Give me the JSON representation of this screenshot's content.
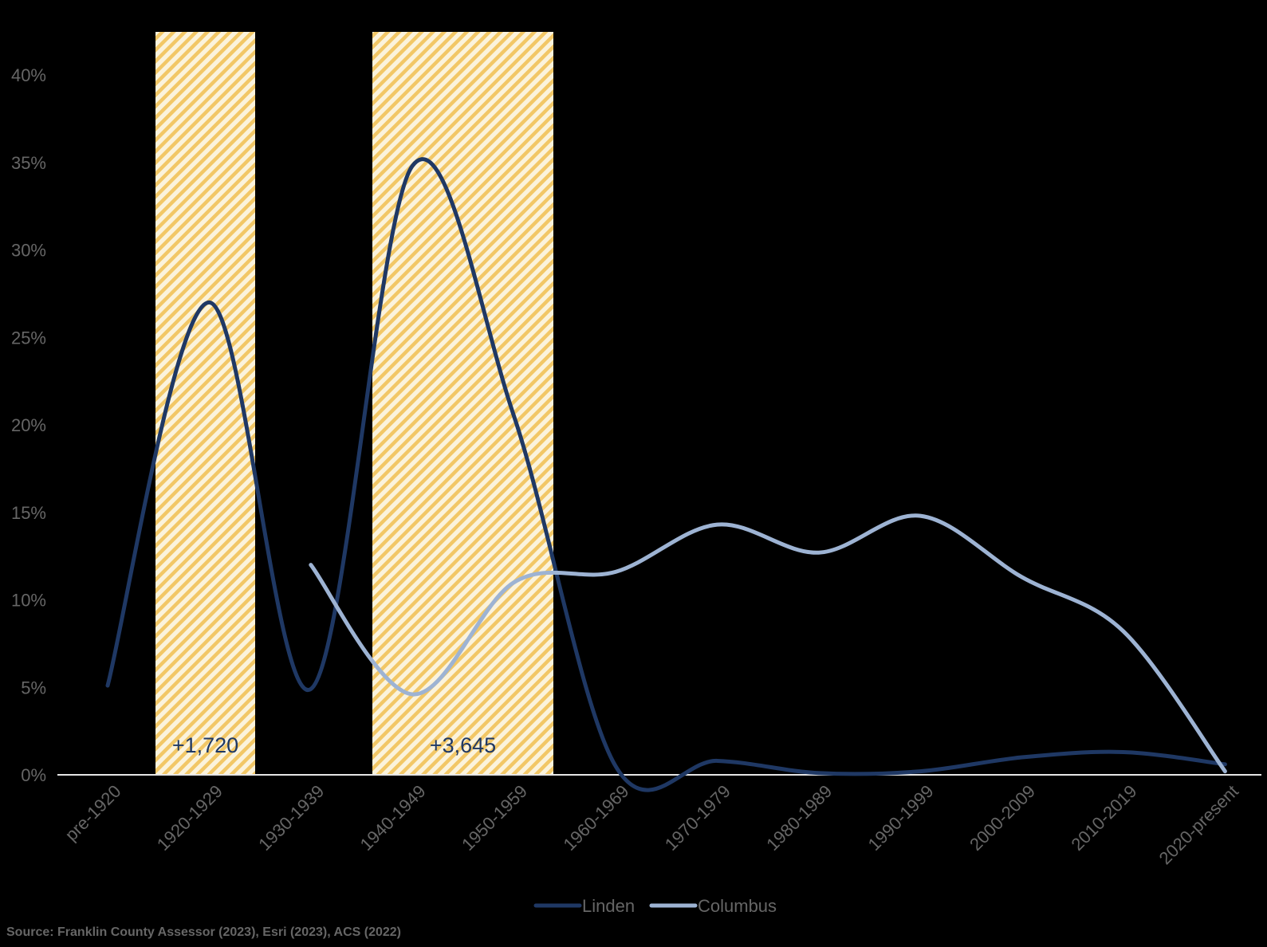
{
  "chart_data": {
    "type": "line",
    "title": "",
    "xlabel": "",
    "ylabel": "",
    "categories": [
      "pre-1920",
      "1920-1929",
      "1930-1939",
      "1940-1949",
      "1950-1959",
      "1960-1969",
      "1970-1979",
      "1980-1989",
      "1990-1999",
      "2000-2009",
      "2010-2019",
      "2020-present"
    ],
    "ylim": [
      0,
      42
    ],
    "yticks": [
      0,
      5,
      10,
      15,
      20,
      25,
      30,
      35,
      40
    ],
    "ytick_labels": [
      "0%",
      "5%",
      "10%",
      "15%",
      "20%",
      "25%",
      "30%",
      "35%",
      "40%"
    ],
    "series": [
      {
        "name": "Linden",
        "color": "#1f3864",
        "values": [
          5.1,
          27.0,
          4.9,
          34.8,
          20.5,
          0.5,
          0.8,
          0.1,
          0.2,
          1.0,
          1.3,
          0.6
        ]
      },
      {
        "name": "Columbus",
        "color": "#9db3d3",
        "values": [
          null,
          null,
          12.0,
          4.6,
          11.0,
          11.6,
          14.3,
          12.7,
          14.8,
          11.3,
          8.2,
          0.2
        ]
      }
    ],
    "highlights": [
      {
        "from": 1,
        "to": 1,
        "label": "+1,720"
      },
      {
        "from": 3,
        "to": 4,
        "label": "+3,645"
      }
    ],
    "highlight_color": "#f2c766",
    "legend": {
      "position": "bottom",
      "entries": [
        "Linden",
        "Columbus"
      ]
    },
    "source": "Source: Franklin County Assessor (2023), Esri (2023), ACS (2022)",
    "axis_color": "#e6e6e6",
    "tick_label_color": "#666666",
    "annotation_color": "#1f3864"
  }
}
